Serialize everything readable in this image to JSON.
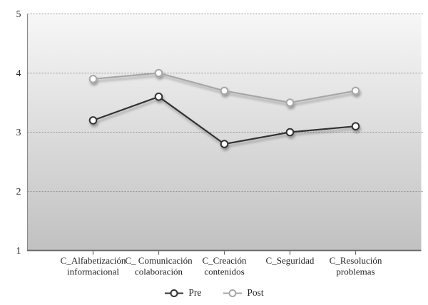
{
  "chart_data": {
    "type": "line",
    "categories": [
      [
        "C_Alfabetización",
        "informacional"
      ],
      [
        "C_ Comunicación",
        "colaboración"
      ],
      [
        "C_Creación",
        "contenidos"
      ],
      [
        "C_Seguridad"
      ],
      [
        "C_Resolución",
        "problemas"
      ]
    ],
    "series": [
      {
        "name": "Pre",
        "values": [
          3.2,
          3.6,
          2.8,
          3.0,
          3.1
        ],
        "color": "#333333"
      },
      {
        "name": "Post",
        "values": [
          3.9,
          4.0,
          3.7,
          3.5,
          3.7
        ],
        "color": "#a6a6a6"
      }
    ],
    "ylim": [
      1,
      5
    ],
    "yticks": [
      1,
      2,
      3,
      4,
      5
    ],
    "grid": "horizontal dashed at 2,3,4,5",
    "legend_position": "bottom-center",
    "title": "",
    "xlabel": "",
    "ylabel": ""
  },
  "colors": {
    "plot_bg_top": "#f7f7f7",
    "plot_bg_bottom": "#c1c1c1",
    "gridline": "#8f8f8f",
    "y_axis_line": "#8a8a8a",
    "x_axis_line": "#666666",
    "marker_fill": "#ffffff",
    "text": "#262626"
  }
}
